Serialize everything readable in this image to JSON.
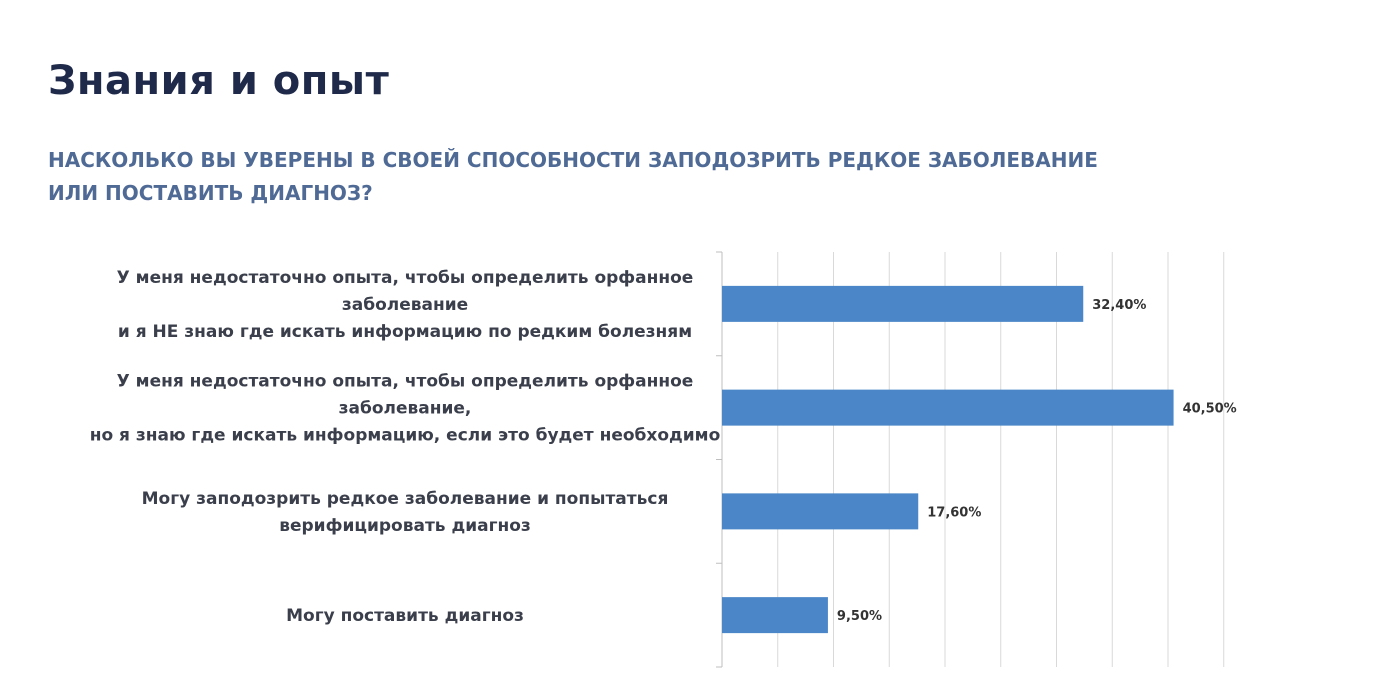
{
  "page": {
    "title": "Знания и опыт",
    "subtitle_lines": [
      "НАСКОЛЬКО ВЫ УВЕРЕНЫ В СВОЕЙ СПОСОБНОСТИ ЗАПОДОЗРИТЬ РЕДКОЕ ЗАБОЛЕВАНИЕ",
      "ИЛИ ПОСТАВИТЬ  ДИАГНОЗ?"
    ]
  },
  "colors": {
    "bar": "#4a86c8",
    "grid": "#d9d9d9",
    "axis": "#bfbfbf",
    "label": "#3a3f4b",
    "value_label": "#333333"
  },
  "chart_data": {
    "type": "bar",
    "orientation": "horizontal",
    "title": "",
    "xlabel": "",
    "ylabel": "",
    "xlim": [
      0,
      45
    ],
    "grid": true,
    "legend": "none",
    "categories": [
      [
        "У меня недостаточно опыта, чтобы определить орфанное",
        "заболевание",
        "и я НЕ знаю где искать информацию по редким болезням"
      ],
      [
        "У меня недостаточно опыта, чтобы определить орфанное",
        "заболевание,",
        "но я знаю где искать информацию, если это будет необходимо"
      ],
      [
        "Могу заподозрить редкое заболевание и попытаться",
        "верифицировать диагноз"
      ],
      [
        "Могу поставить диагноз"
      ]
    ],
    "values": [
      32.4,
      40.5,
      17.6,
      9.5
    ],
    "value_labels": [
      "32,40%",
      "40,50%",
      "17,60%",
      "9,50%"
    ]
  }
}
